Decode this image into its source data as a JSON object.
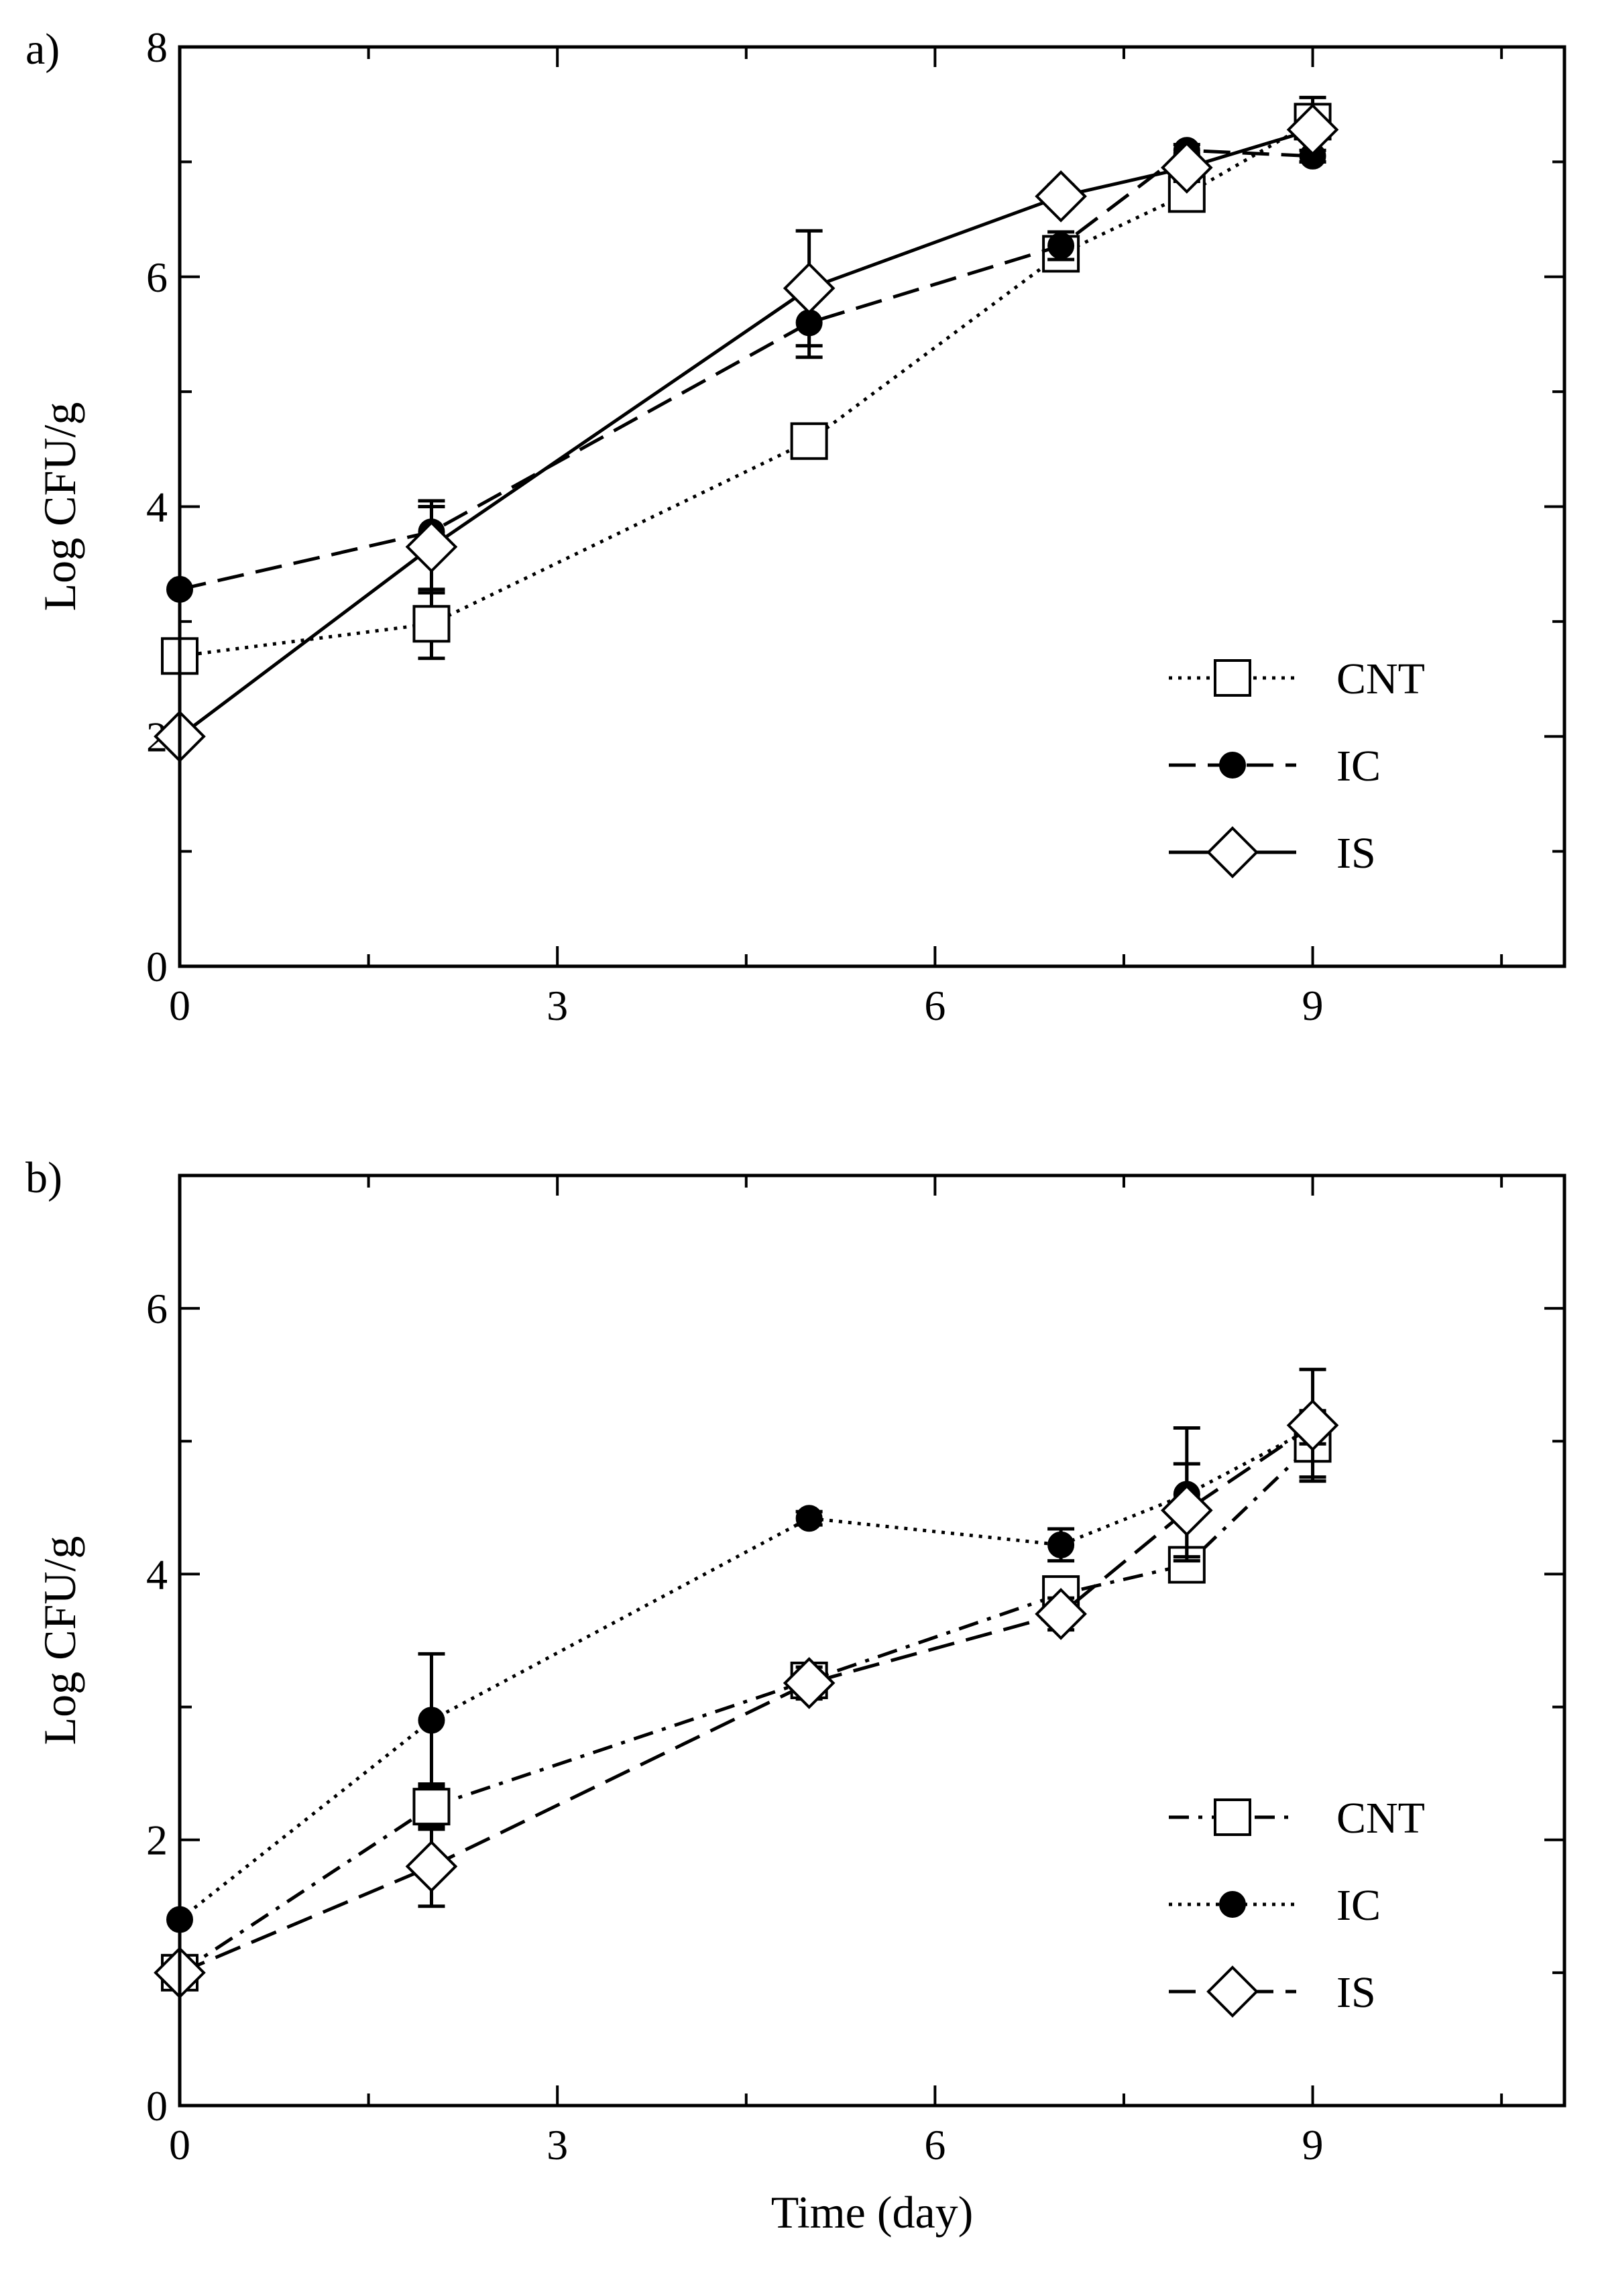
{
  "chart_data": [
    {
      "panel_label": "a)",
      "type": "line",
      "xlabel": "",
      "ylabel": "Log CFU/g",
      "xlim": [
        0,
        11
      ],
      "ylim": [
        0,
        8
      ],
      "x_ticks": [
        0,
        3,
        6,
        9
      ],
      "x_ticklabels": [
        "0",
        "3",
        "6",
        "9"
      ],
      "x_minor_ticks": [
        1.5,
        4.5,
        7.5,
        10.5
      ],
      "y_ticks": [
        0,
        2,
        4,
        6,
        8
      ],
      "y_ticklabels": [
        "0",
        "2",
        "4",
        "6",
        "8"
      ],
      "y_minor_ticks": [
        1,
        3,
        5,
        7
      ],
      "legend_position": "lower-right",
      "series": [
        {
          "name": "CNT",
          "marker": "square-open",
          "line": "dotted",
          "x": [
            0,
            2,
            5,
            7,
            8,
            9
          ],
          "y": [
            2.7,
            2.98,
            4.57,
            6.2,
            6.72,
            7.35
          ],
          "err": [
            0,
            0.3,
            0,
            0.1,
            0,
            0.12
          ]
        },
        {
          "name": "IC",
          "marker": "circle-filled",
          "line": "dashed",
          "x": [
            0,
            2,
            5,
            7,
            8,
            9
          ],
          "y": [
            3.28,
            3.78,
            5.6,
            6.27,
            7.1,
            7.05
          ],
          "err": [
            0,
            0.22,
            0.3,
            0.12,
            0.05,
            0.05
          ]
        },
        {
          "name": "IS",
          "marker": "diamond-open",
          "line": "solid",
          "x": [
            0,
            2,
            5,
            7,
            8,
            9
          ],
          "y": [
            2.0,
            3.65,
            5.9,
            6.7,
            6.95,
            7.28
          ],
          "err": [
            0,
            0.4,
            0.5,
            0.1,
            0.12,
            0.28
          ]
        }
      ]
    },
    {
      "panel_label": "b)",
      "type": "line",
      "xlabel": "Time (day)",
      "ylabel": "Log CFU/g",
      "xlim": [
        0,
        11
      ],
      "ylim": [
        0,
        7
      ],
      "x_ticks": [
        0,
        3,
        6,
        9
      ],
      "x_ticklabels": [
        "0",
        "3",
        "6",
        "9"
      ],
      "x_minor_ticks": [
        1.5,
        4.5,
        7.5,
        10.5
      ],
      "y_ticks": [
        0,
        2,
        4,
        6
      ],
      "y_ticklabels": [
        "0",
        "2",
        "4",
        "6"
      ],
      "y_minor_ticks": [
        1,
        3,
        5,
        7
      ],
      "legend_position": "lower-right",
      "series": [
        {
          "name": "CNT",
          "marker": "square-open",
          "line": "dash-dot",
          "x": [
            0,
            2,
            5,
            7,
            8,
            9
          ],
          "y": [
            1.0,
            2.25,
            3.2,
            3.85,
            4.07,
            4.98
          ],
          "err": [
            0,
            0.17,
            0.1,
            0.08,
            0.05,
            0.25
          ]
        },
        {
          "name": "IC",
          "marker": "circle-filled",
          "line": "dotted",
          "x": [
            0,
            2,
            5,
            7,
            8,
            9
          ],
          "y": [
            1.4,
            2.9,
            4.42,
            4.22,
            4.6,
            5.1
          ],
          "err": [
            0,
            0.5,
            0.05,
            0.12,
            0.5,
            0.12
          ]
        },
        {
          "name": "IS",
          "marker": "diamond-open",
          "line": "dashed",
          "x": [
            0,
            2,
            5,
            7,
            8,
            9
          ],
          "y": [
            1.0,
            1.8,
            3.18,
            3.7,
            4.48,
            5.12
          ],
          "err": [
            0,
            0.3,
            0.12,
            0.12,
            0.35,
            0.42
          ]
        }
      ]
    }
  ]
}
